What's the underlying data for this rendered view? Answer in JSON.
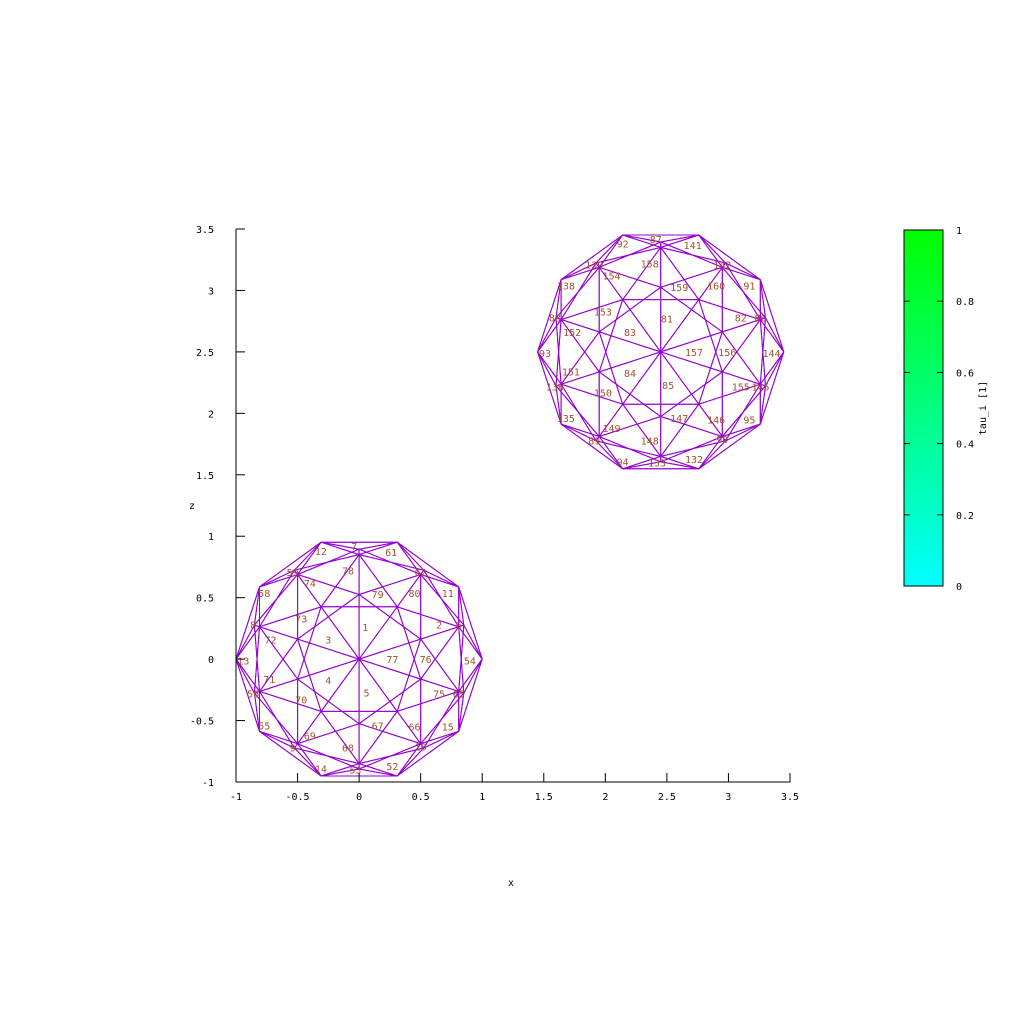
{
  "chart_data": {
    "type": "scatter",
    "subtype": "triangulated-sphere-mesh",
    "xlabel": "x",
    "ylabel": "z",
    "xlim": [
      -1,
      3.5
    ],
    "ylim": [
      -1,
      3.5
    ],
    "xticks": [
      "-1",
      "-0.5",
      "0",
      "0.5",
      "1",
      "1.5",
      "2",
      "2.5",
      "3",
      "3.5"
    ],
    "yticks": [
      "-1",
      "-0.5",
      "0",
      "0.5",
      "1",
      "1.5",
      "2",
      "2.5",
      "3",
      "3.5"
    ],
    "grid": false,
    "colorbar": {
      "label": "tau_i [1]",
      "range": [
        0,
        1
      ],
      "ticks": [
        "0",
        "0.2",
        "0.4",
        "0.6",
        "0.8",
        "1"
      ],
      "color_low": "#00ffff",
      "color_high": "#00ff00"
    },
    "colors": {
      "edge": "#9400d3",
      "label": "#a0522d",
      "highlight": "#1a1060",
      "axis": "#000000"
    },
    "spheres": [
      {
        "center": [
          0,
          0
        ],
        "radius": 1,
        "triangle_labels": [
          {
            "id": "1",
            "x": 0.05,
            "z": 0.26
          },
          {
            "id": "2",
            "x": 0.65,
            "z": 0.28
          },
          {
            "id": "3",
            "x": -0.25,
            "z": 0.16
          },
          {
            "id": "4",
            "x": -0.25,
            "z": -0.17
          },
          {
            "id": "5",
            "x": 0.06,
            "z": -0.27
          },
          {
            "id": "6",
            "x": 0.81,
            "z": 0.28
          },
          {
            "id": "7",
            "x": -0.04,
            "z": 0.92
          },
          {
            "id": "8",
            "x": -0.86,
            "z": 0.28
          },
          {
            "id": "9",
            "x": -0.54,
            "z": -0.72
          },
          {
            "id": "10",
            "x": 0.5,
            "z": -0.71
          },
          {
            "id": "11",
            "x": 0.72,
            "z": 0.54
          },
          {
            "id": "12",
            "x": -0.31,
            "z": 0.88
          },
          {
            "id": "13",
            "x": -0.94,
            "z": -0.01
          },
          {
            "id": "14",
            "x": -0.31,
            "z": -0.89
          },
          {
            "id": "15",
            "x": 0.72,
            "z": -0.55
          },
          {
            "id": "52",
            "x": 0.27,
            "z": -0.87
          },
          {
            "id": "53",
            "x": -0.03,
            "z": -0.9
          },
          {
            "id": "54",
            "x": 0.9,
            "z": -0.01
          },
          {
            "id": "55",
            "x": -0.77,
            "z": -0.54
          },
          {
            "id": "56",
            "x": -0.86,
            "z": -0.28
          },
          {
            "id": "58",
            "x": -0.77,
            "z": 0.54
          },
          {
            "id": "59",
            "x": -0.54,
            "z": 0.71
          },
          {
            "id": "61",
            "x": 0.26,
            "z": 0.87
          },
          {
            "id": "62",
            "x": 0.5,
            "z": 0.71
          },
          {
            "id": "65",
            "x": 0.81,
            "z": -0.28
          },
          {
            "id": "66",
            "x": 0.45,
            "z": -0.55
          },
          {
            "id": "67",
            "x": 0.15,
            "z": -0.54
          },
          {
            "id": "68",
            "x": -0.09,
            "z": -0.72
          },
          {
            "id": "69",
            "x": -0.4,
            "z": -0.62
          },
          {
            "id": "70",
            "x": -0.47,
            "z": -0.33
          },
          {
            "id": "71",
            "x": -0.73,
            "z": -0.16
          },
          {
            "id": "72",
            "x": -0.72,
            "z": 0.16
          },
          {
            "id": "73",
            "x": -0.47,
            "z": 0.33
          },
          {
            "id": "74",
            "x": -0.4,
            "z": 0.62
          },
          {
            "id": "75",
            "x": 0.65,
            "z": -0.28
          },
          {
            "id": "76",
            "x": 0.54,
            "z": 0.0
          },
          {
            "id": "77",
            "x": 0.27,
            "z": 0.0
          },
          {
            "id": "78",
            "x": -0.09,
            "z": 0.72
          },
          {
            "id": "79",
            "x": 0.15,
            "z": 0.53
          },
          {
            "id": "80",
            "x": 0.45,
            "z": 0.54
          }
        ]
      },
      {
        "center": [
          2.45,
          2.5
        ],
        "radius": 1,
        "triangle_labels": [
          {
            "id": "81",
            "x": 2.5,
            "z": 2.77
          },
          {
            "id": "82",
            "x": 3.1,
            "z": 2.78
          },
          {
            "id": "83",
            "x": 2.2,
            "z": 2.66
          },
          {
            "id": "84",
            "x": 2.2,
            "z": 2.33
          },
          {
            "id": "85",
            "x": 2.51,
            "z": 2.23
          },
          {
            "id": "86",
            "x": 3.26,
            "z": 2.78
          },
          {
            "id": "87",
            "x": 2.41,
            "z": 3.42
          },
          {
            "id": "88",
            "x": 1.59,
            "z": 2.78
          },
          {
            "id": "89",
            "x": 1.91,
            "z": 1.78
          },
          {
            "id": "90",
            "x": 2.95,
            "z": 1.79
          },
          {
            "id": "91",
            "x": 3.17,
            "z": 3.04
          },
          {
            "id": "92",
            "x": 2.14,
            "z": 3.38
          },
          {
            "id": "93",
            "x": 1.51,
            "z": 2.49
          },
          {
            "id": "94",
            "x": 2.14,
            "z": 1.61
          },
          {
            "id": "95",
            "x": 3.17,
            "z": 1.95
          },
          {
            "id": "132",
            "x": 2.72,
            "z": 1.63
          },
          {
            "id": "133",
            "x": 2.42,
            "z": 1.6
          },
          {
            "id": "135",
            "x": 1.68,
            "z": 1.96
          },
          {
            "id": "136",
            "x": 1.59,
            "z": 2.22
          },
          {
            "id": "138",
            "x": 1.68,
            "z": 3.04
          },
          {
            "id": "139",
            "x": 1.91,
            "z": 3.21
          },
          {
            "id": "141",
            "x": 2.71,
            "z": 3.37
          },
          {
            "id": "142",
            "x": 2.95,
            "z": 3.21
          },
          {
            "id": "144",
            "x": 3.35,
            "z": 2.49
          },
          {
            "id": "145",
            "x": 3.26,
            "z": 2.22
          },
          {
            "id": "146",
            "x": 2.9,
            "z": 1.95
          },
          {
            "id": "147",
            "x": 2.6,
            "z": 1.96
          },
          {
            "id": "148",
            "x": 2.36,
            "z": 1.78
          },
          {
            "id": "149",
            "x": 2.05,
            "z": 1.88
          },
          {
            "id": "150",
            "x": 1.98,
            "z": 2.17
          },
          {
            "id": "151",
            "x": 1.72,
            "z": 2.34
          },
          {
            "id": "152",
            "x": 1.73,
            "z": 2.66
          },
          {
            "id": "153",
            "x": 1.98,
            "z": 2.83
          },
          {
            "id": "154",
            "x": 2.05,
            "z": 3.12
          },
          {
            "id": "155",
            "x": 3.1,
            "z": 2.22
          },
          {
            "id": "156",
            "x": 2.99,
            "z": 2.5
          },
          {
            "id": "157",
            "x": 2.72,
            "z": 2.5
          },
          {
            "id": "158",
            "x": 2.36,
            "z": 3.22
          },
          {
            "id": "159",
            "x": 2.6,
            "z": 3.03
          },
          {
            "id": "160",
            "x": 2.9,
            "z": 3.04
          }
        ]
      }
    ]
  }
}
